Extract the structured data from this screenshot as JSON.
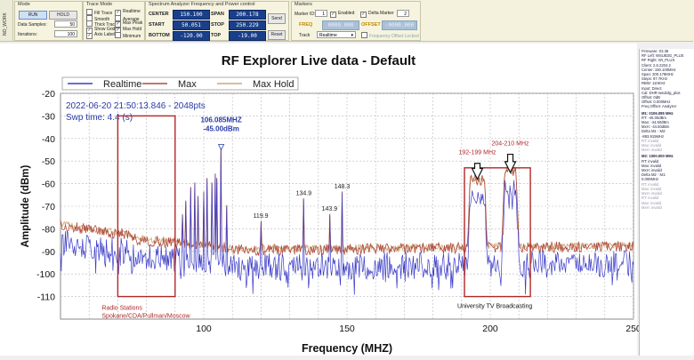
{
  "vertical_tab": "NO_WORK",
  "mode": {
    "title": "Mode",
    "run_label": "RUN",
    "hold_label": "HOLD",
    "data_samples_label": "Data Samples:",
    "data_samples_value": "50",
    "iterations_label": "Iterations:",
    "iterations_value": "100"
  },
  "trace_mode": {
    "title": "Trace Mode",
    "options": [
      {
        "label": "Fill Trace",
        "checked": false
      },
      {
        "label": "Smooth",
        "checked": false
      },
      {
        "label": "Thick Trace",
        "checked": false
      },
      {
        "label": "Show Grid",
        "checked": true
      },
      {
        "label": "Axis Labels",
        "checked": true
      },
      {
        "label": "Realtime",
        "checked": true
      },
      {
        "label": "Average",
        "checked": false
      },
      {
        "label": "Max Peak",
        "checked": true
      },
      {
        "label": "Max Hold",
        "checked": true
      },
      {
        "label": "Minimum",
        "checked": false
      }
    ]
  },
  "spectrum": {
    "title": "Spectrum Analyzer Frequency and Power control",
    "center_label": "CENTER",
    "center_value": "150.100",
    "span_label": "SPAN",
    "span_value": "200.178",
    "start_label": "START",
    "start_value": "50.051",
    "stop_label": "STOP",
    "stop_value": "250.229",
    "bottom_label": "BOTTOM",
    "bottom_value": "-120.00",
    "top_label": "TOP",
    "top_value": "-19.00",
    "send_label": "Send",
    "reset_label": "Reset"
  },
  "markers": {
    "title": "Markers",
    "marker_id_label": "Marker ID:",
    "marker_id_value": "1",
    "enabled_label": "Enabled",
    "delta_marker_label": "Delta Marker",
    "delta_id_value": "2",
    "freq_label": "FREQ",
    "freq_value": "0000.000",
    "offset_label": "OFFSET",
    "offset_value": "-0000.000",
    "track_label": "Track",
    "track_value": "Realtime",
    "freq_offset_label": "Frequency Offset Locked"
  },
  "info_panel": {
    "lines": [
      "Firmware: 03.38",
      "RF Left: WSUB3G_PLUS",
      "RF Right: WI_PLUS",
      "Client: 2.6.2204.2",
      "Center: 150.100MHz",
      "Span: 200.178MHz",
      "Steps: 97.7KHz",
      "RBW: 110KHz",
      "Input: Direct",
      "Cal: DHR-wsub3g_plus",
      "Offset: 0dB",
      "Offset: 0.000MHz",
      "Freq Offset: Analyzer"
    ],
    "m1_title": "M1: 0106.085 MHz",
    "m1_lines": [
      "RT: -45.00dBm",
      "Max: -44.50dBm",
      "MxH: -44.50dBm",
      "Delta M1 - M2:",
      "-893.915MHz"
    ],
    "m1_dim": [
      "RT: invalid",
      "Max: invalid",
      "MxH: invalid"
    ],
    "m2_title": "M2: 1000.000 MHz",
    "m2_lines": [
      "RT: invalid",
      "Max: invalid",
      "MxH: invalid",
      "Delta M2 - M1:",
      "0.000MHz"
    ],
    "m2_dim": [
      "RT: invalid",
      "Max: invalid",
      "MxH: invalid",
      "RT: invalid",
      "Max: invalid",
      "MxH: invalid"
    ]
  },
  "chart_data": {
    "type": "line",
    "title": "RF Explorer Live data - Default",
    "xlabel": "Frequency (MHZ)",
    "ylabel": "Amplitude (dBm)",
    "xlim": [
      50,
      250
    ],
    "ylim": [
      -120,
      -20
    ],
    "xticks": [
      100,
      150,
      200,
      250
    ],
    "yticks": [
      -20,
      -30,
      -40,
      -50,
      -60,
      -70,
      -80,
      -90,
      -100,
      -110
    ],
    "grid": true,
    "legend_position": "top-left",
    "series": [
      {
        "name": "Realtime",
        "color": "#3c3cc8"
      },
      {
        "name": "Max",
        "color": "#b04a3a"
      },
      {
        "name": "Max Hold",
        "color": "#c8a878"
      }
    ],
    "timestamp": "2022-06-20 21:50:13.846 - 2048pts",
    "sweep_time": "Swp time: 4.4 (s)",
    "marker_label_freq": "106.085MHZ",
    "marker_label_amp": "-45.00dBm",
    "marker": {
      "freq": 106.085,
      "amp": -45.0
    },
    "peak_labels": [
      {
        "text": "119.9",
        "freq": 119.9,
        "amp": -77
      },
      {
        "text": "134.9",
        "freq": 134.9,
        "amp": -67
      },
      {
        "text": "143.9",
        "freq": 143.9,
        "amp": -74
      },
      {
        "text": "148.3",
        "freq": 148.3,
        "amp": -64
      }
    ],
    "annotations": {
      "radio_box_label": "Radio Stations\nSpokane/CDA/Pullman/Moscow",
      "tv_box_label": "University TV Broadcasting",
      "band1_label": "192-199 MHz",
      "band2_label": "204-210 MHz"
    },
    "radio_box": {
      "x0": 70,
      "x1": 90,
      "y0": -30,
      "y1": -110
    },
    "tv_box": {
      "x0": 191,
      "x1": 214,
      "y0": -53,
      "y1": -110
    },
    "fm_peaks": [
      {
        "f": 92.5,
        "a": -74
      },
      {
        "f": 93.7,
        "a": -68
      },
      {
        "f": 95.3,
        "a": -62
      },
      {
        "f": 96.9,
        "a": -60
      },
      {
        "f": 98.1,
        "a": -66
      },
      {
        "f": 99.9,
        "a": -64
      },
      {
        "f": 101.1,
        "a": -58
      },
      {
        "f": 102.9,
        "a": -60
      },
      {
        "f": 103.9,
        "a": -56
      },
      {
        "f": 104.5,
        "a": -58
      },
      {
        "f": 106.1,
        "a": -44
      },
      {
        "f": 107.9,
        "a": -70
      }
    ],
    "tv_bands": [
      {
        "start": 192,
        "end": 199,
        "level_realtime": -66,
        "level_max": -60
      },
      {
        "start": 204,
        "end": 210,
        "level_realtime": -62,
        "level_max": -57
      }
    ]
  }
}
